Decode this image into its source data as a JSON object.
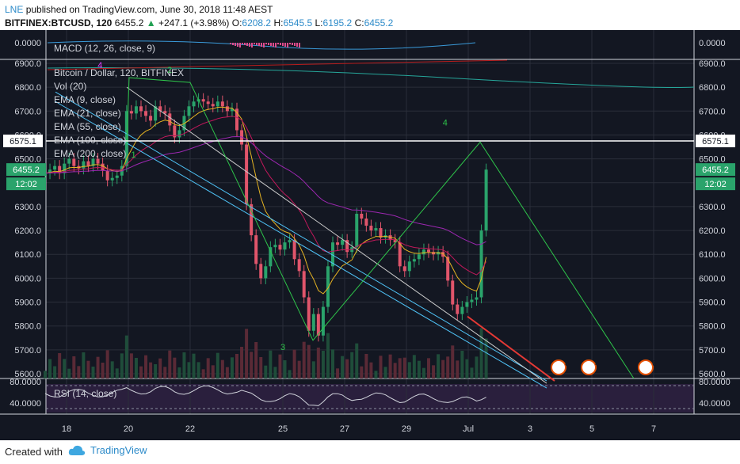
{
  "header": {
    "author": "LNE",
    "published_text": "published on TradingView.com, June 30, 2018 11:48 AEST",
    "symbol": "BITFINEX:BTCUSD, 120",
    "last": "6455.2",
    "change": "+247.1 (+3.98%)",
    "o_label": "O:",
    "o": "6208.2",
    "h_label": "H:",
    "h": "6545.5",
    "l_label": "L:",
    "l": "6195.2",
    "c_label": "C:",
    "c": "6455.2"
  },
  "footer": {
    "created_with": "Created with",
    "brand": "TradingView"
  },
  "colors": {
    "bg": "#131722",
    "grid": "#2a2e39",
    "up": "#2aa36b",
    "down": "#e0556b",
    "axis_text": "#d1d4dc",
    "wave": "#2ec44a"
  },
  "chart_data": {
    "type": "candlestick",
    "main_pane": {
      "title": "Bitcoin / Dollar, 120, BITFINEX",
      "studies": [
        "Vol (20)",
        "EMA (9, close)",
        "EMA (21, close)",
        "EMA (55, close)",
        "EMA (100, close)",
        "EMA (200, close)"
      ],
      "y_ticks": [
        "6900.0",
        "6800.0",
        "6700.0",
        "6600.0",
        "6500.0",
        "6400.0",
        "6300.0",
        "6200.0",
        "6100.0",
        "6000.0",
        "5900.0",
        "5800.0",
        "5700.0",
        "5600.0"
      ],
      "ylim": [
        5580,
        6920
      ],
      "horizontal_line": 6575.1,
      "horizontal_line_label": "6575.1",
      "last_price_label": "6455.2",
      "countdown": "12:02",
      "wave_labels": [
        {
          "label": "4",
          "date": "2018-06-19 02:00",
          "price": 6880
        },
        {
          "label": "2",
          "date": "2018-06-21 08:00",
          "price": 6860
        },
        {
          "label": "1",
          "date": "2018-06-20 04:00",
          "price": 6505
        },
        {
          "label": "3",
          "date": "2018-06-25 00:00",
          "price": 5700
        },
        {
          "label": "4",
          "date": "2018-06-30 06:00",
          "price": 6640
        }
      ],
      "candles_close": [
        6440,
        6455,
        6470,
        6440,
        6480,
        6500,
        6470,
        6460,
        6490,
        6470,
        6500,
        6480,
        6450,
        6410,
        6420,
        6430,
        6470,
        6700,
        6690,
        6720,
        6700,
        6680,
        6660,
        6720,
        6700,
        6690,
        6640,
        6590,
        6620,
        6680,
        6720,
        6740,
        6750,
        6740,
        6730,
        6720,
        6740,
        6720,
        6700,
        6710,
        6620,
        6560,
        6310,
        6180,
        6060,
        6000,
        6050,
        6130,
        6140,
        6120,
        6150,
        6160,
        6080,
        6030,
        5920,
        5780,
        5850,
        5760,
        5880,
        6050,
        6150,
        6140,
        6160,
        6110,
        6130,
        6270,
        6250,
        6220,
        6200,
        6210,
        6170,
        6180,
        6160,
        6150,
        6050,
        6030,
        6070,
        6080,
        6100,
        6120,
        6110,
        6100,
        6110,
        6090,
        5990,
        5890,
        5850,
        5880,
        5900,
        5910,
        5920,
        6200,
        6455
      ]
    },
    "macd_pane": {
      "title": "MACD (12, 26, close, 9)",
      "y_tick": "0.0000"
    },
    "rsi_pane": {
      "title": "RSI (14, close)",
      "y_ticks": [
        "80.0000",
        "40.0000"
      ]
    },
    "x_ticks": [
      "18",
      "20",
      "22",
      "25",
      "27",
      "29",
      "Jul",
      "3",
      "5",
      "7"
    ]
  }
}
